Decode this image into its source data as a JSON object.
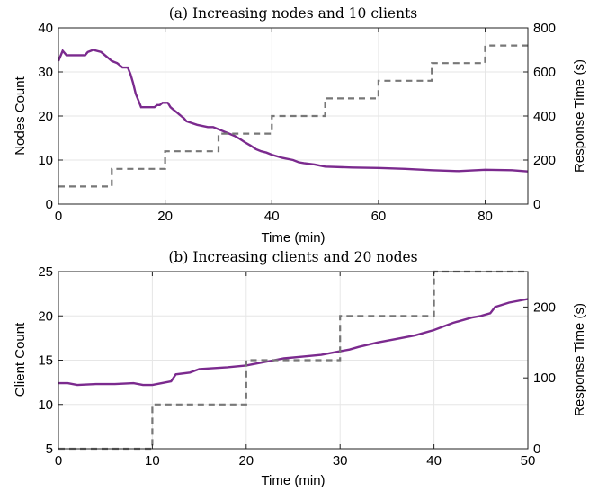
{
  "chart_data": [
    {
      "type": "line",
      "title": "(a) Increasing nodes and 10 clients",
      "xlabel": "Time (min)",
      "ylabel_left": "Nodes Count",
      "ylabel_right": "Response Time (s)",
      "xlim": [
        0,
        88
      ],
      "ylim_left": [
        0,
        40
      ],
      "ylim_right": [
        0,
        800
      ],
      "x_ticks": [
        0,
        20,
        40,
        60,
        80
      ],
      "y_left_ticks": [
        0,
        10,
        20,
        30,
        40
      ],
      "y_right_ticks": [
        0,
        200,
        400,
        600,
        800
      ],
      "grid": true,
      "series": [
        {
          "axis": "left",
          "color": "#7b2a8e",
          "style": "solid",
          "x": [
            0,
            0.8,
            1.5,
            2.5,
            5,
            5.5,
            6.5,
            8,
            9,
            10,
            11,
            12,
            13,
            13.5,
            14,
            14.5,
            15,
            15.5,
            17,
            18,
            18.5,
            19,
            19.5,
            20,
            20.5,
            21,
            21.5,
            22,
            22.5,
            23,
            23.5,
            24,
            26,
            28,
            29,
            30,
            31,
            32,
            33,
            34,
            35,
            36,
            37,
            38,
            39,
            40,
            42,
            44,
            45,
            46,
            48,
            50,
            55,
            60,
            65,
            70,
            75,
            80,
            85,
            88
          ],
          "y": [
            32.5,
            34.8,
            33.8,
            33.8,
            33.8,
            34.5,
            35.0,
            34.5,
            33.5,
            32.5,
            32.0,
            31.0,
            31.0,
            29.5,
            27.5,
            25.0,
            23.5,
            22.0,
            22.0,
            22.0,
            22.5,
            22.5,
            23.0,
            23.0,
            23.0,
            22.0,
            21.5,
            21.0,
            20.5,
            20.0,
            19.5,
            18.8,
            18.0,
            17.5,
            17.5,
            17.0,
            16.5,
            16.0,
            15.5,
            14.8,
            14.0,
            13.3,
            12.5,
            12.0,
            11.7,
            11.2,
            10.5,
            10.0,
            9.5,
            9.3,
            9.0,
            8.5,
            8.3,
            8.2,
            8.0,
            7.7,
            7.5,
            7.8,
            7.7,
            7.4
          ]
        },
        {
          "axis": "right",
          "color": "#777777",
          "style": "dashed",
          "x": [
            0,
            10,
            10,
            20,
            20,
            30,
            30,
            40,
            40,
            50,
            50,
            60,
            60,
            70,
            70,
            80,
            80,
            88
          ],
          "y": [
            80,
            80,
            160,
            160,
            240,
            240,
            320,
            320,
            400,
            400,
            480,
            480,
            560,
            560,
            640,
            640,
            720,
            720
          ]
        }
      ]
    },
    {
      "type": "line",
      "title": "(b) Increasing clients and 20 nodes",
      "xlabel": "Time (min)",
      "ylabel_left": "Client Count",
      "ylabel_right": "Response Time (s)",
      "xlim": [
        0,
        50
      ],
      "ylim_left": [
        5,
        25
      ],
      "ylim_right": [
        0,
        250
      ],
      "x_ticks": [
        0,
        10,
        20,
        30,
        40,
        50
      ],
      "y_left_ticks": [
        5,
        10,
        15,
        20,
        25
      ],
      "y_right_ticks": [
        0,
        100,
        200
      ],
      "grid": true,
      "series": [
        {
          "axis": "left",
          "color": "#7b2a8e",
          "style": "solid",
          "x": [
            0,
            1,
            2,
            4,
            6,
            8,
            9,
            10,
            11,
            12,
            12.5,
            14,
            15,
            18,
            20,
            21,
            22,
            23,
            24,
            26,
            28,
            30,
            31,
            32,
            34,
            36,
            38,
            40,
            42,
            44,
            45,
            46,
            46.5,
            48,
            49,
            50
          ],
          "y": [
            12.4,
            12.4,
            12.2,
            12.3,
            12.3,
            12.4,
            12.2,
            12.2,
            12.4,
            12.6,
            13.4,
            13.6,
            14.0,
            14.2,
            14.4,
            14.6,
            14.8,
            15.0,
            15.2,
            15.4,
            15.6,
            16.0,
            16.2,
            16.5,
            17.0,
            17.4,
            17.8,
            18.4,
            19.2,
            19.8,
            20.0,
            20.3,
            21.0,
            21.5,
            21.7,
            21.9
          ]
        },
        {
          "axis": "right",
          "color": "#777777",
          "style": "dashed",
          "x": [
            0,
            10,
            10,
            20,
            20,
            30,
            30,
            40,
            40,
            50
          ],
          "y": [
            0,
            0,
            62.5,
            62.5,
            125,
            125,
            187.5,
            187.5,
            250,
            250
          ]
        }
      ]
    }
  ]
}
